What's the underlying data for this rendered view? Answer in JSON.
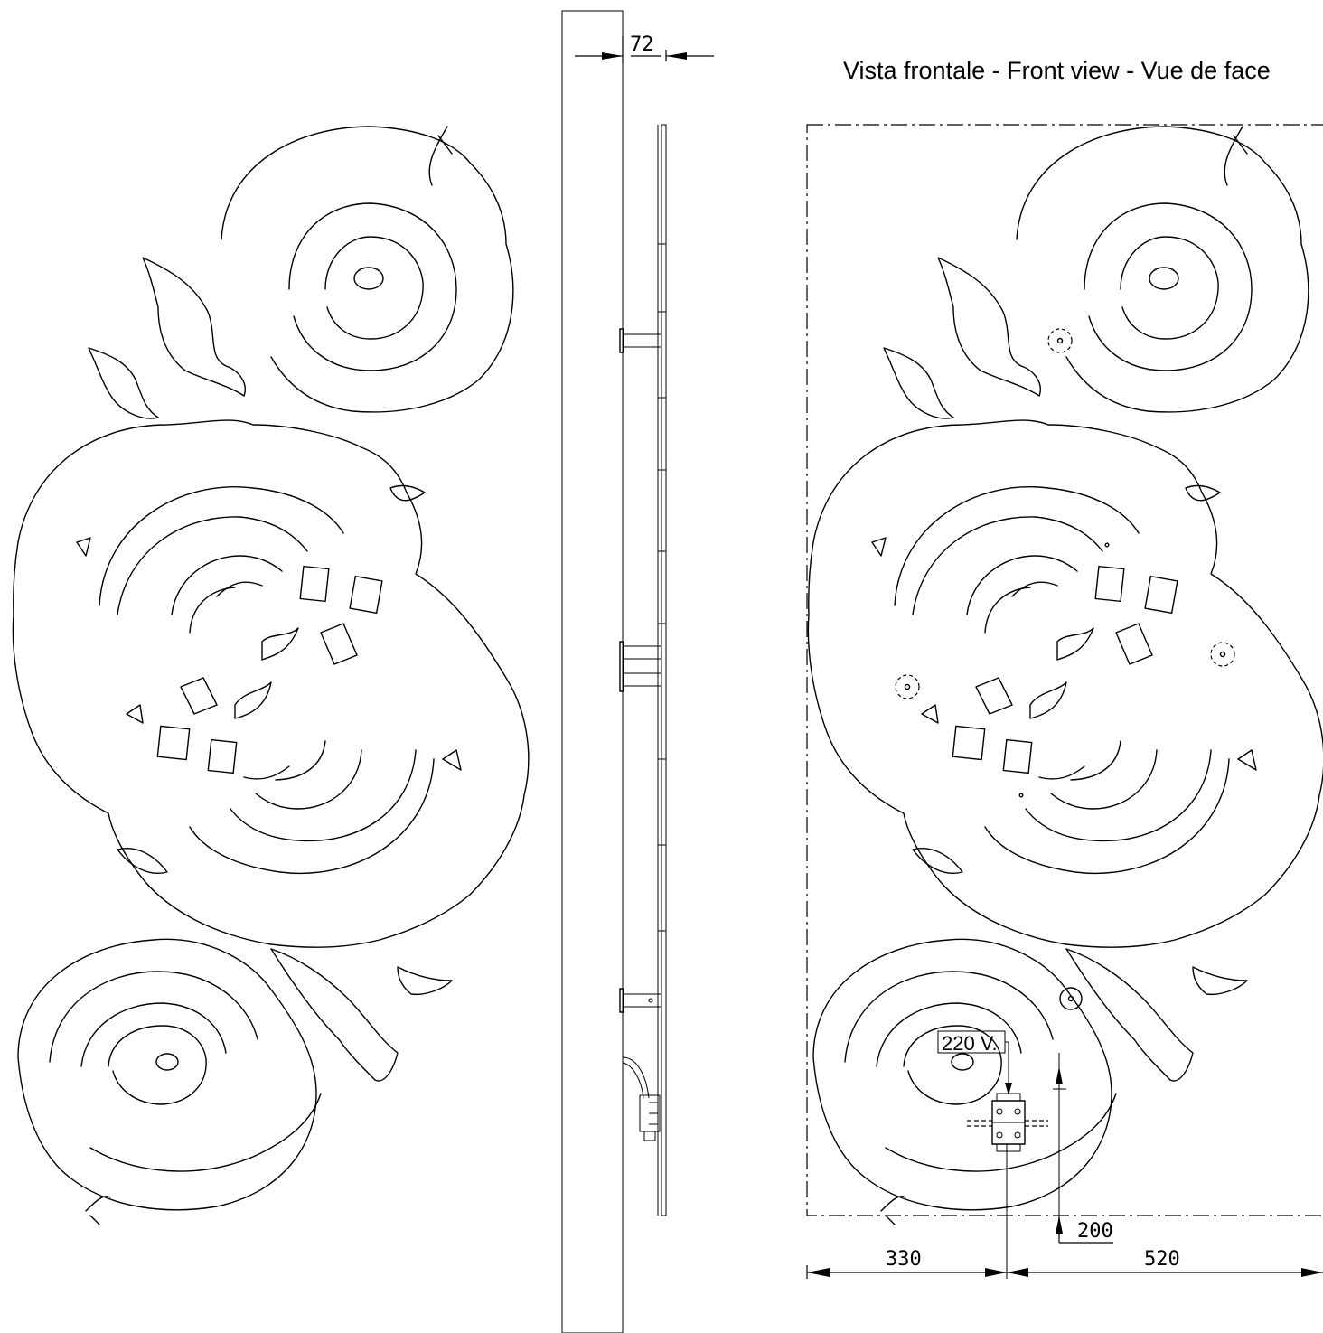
{
  "view_title": "Vista frontale - Front view - Vue de face",
  "dimensions": {
    "depth": "72",
    "left_offset": "330",
    "right_offset": "520",
    "bottom_height": "200"
  },
  "voltage_label": "220 V."
}
